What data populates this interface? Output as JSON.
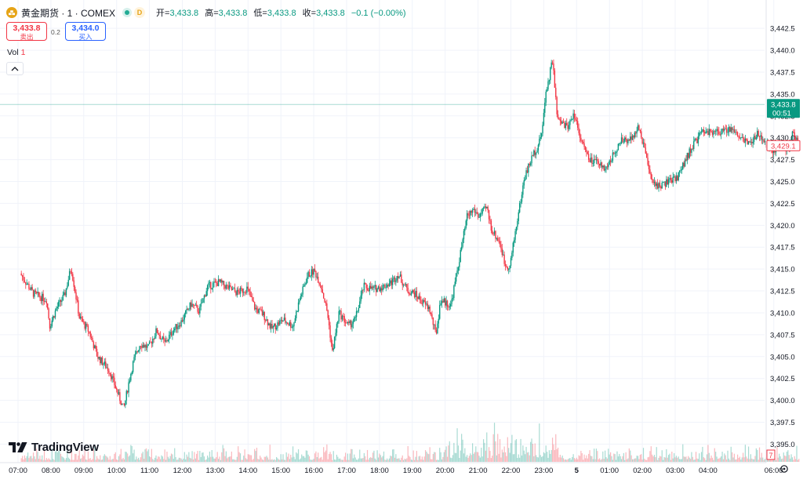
{
  "legend": {
    "symbol_name": "黄金期货 · 1 · COMEX",
    "interval_badge": "D",
    "ohlc": [
      {
        "label": "开=",
        "value": "3,433.8"
      },
      {
        "label": "高=",
        "value": "3,433.8"
      },
      {
        "label": "低=",
        "value": "3,433.8"
      },
      {
        "label": "收=",
        "value": "3,433.8"
      }
    ],
    "change": "−0.1 (−0.00%)"
  },
  "trade": {
    "sell_price": "3,433.8",
    "sell_label": "卖出",
    "spread": "0.2",
    "buy_price": "3,434.0",
    "buy_label": "买入"
  },
  "volume_legend": {
    "label": "Vol",
    "value": "1"
  },
  "branding": {
    "watermark": "TradingView"
  },
  "price_axis": {
    "ticks": [
      "3,442.5",
      "3,440.0",
      "3,437.5",
      "3,435.0",
      "3,432.5",
      "3,430.0",
      "3,427.5",
      "3,425.0",
      "3,422.5",
      "3,420.0",
      "3,417.5",
      "3,415.0",
      "3,412.5",
      "3,410.0",
      "3,407.5",
      "3,405.0",
      "3,402.5",
      "3,400.0",
      "3,397.5",
      "3,395.0"
    ],
    "last_price_label": "3,433.8",
    "countdown": "00:51",
    "prev_close_label": "3,429.1",
    "volume_tag": "7"
  },
  "time_axis": {
    "ticks": [
      "07:00",
      "08:00",
      "09:00",
      "10:00",
      "11:00",
      "12:00",
      "13:00",
      "14:00",
      "15:00",
      "16:00",
      "17:00",
      "18:00",
      "19:00",
      "20:00",
      "21:00",
      "22:00",
      "23:00",
      "5",
      "01:00",
      "02:00",
      "03:00",
      "04:00",
      "06:00"
    ]
  },
  "colors": {
    "up": "#089981",
    "down": "#f23645",
    "last_price": "#089981",
    "prev_close": "#f23645",
    "grid": "#f0f3fa"
  },
  "chart_data": {
    "type": "candlestick",
    "title": "黄金期货 · 1 · COMEX",
    "interval": "1 minute",
    "ylim": [
      3394.5,
      3443.5
    ],
    "x": [
      "07:00",
      "08:00",
      "09:00",
      "10:00",
      "11:00",
      "12:00",
      "13:00",
      "14:00",
      "15:00",
      "16:00",
      "17:00",
      "18:00",
      "19:00",
      "20:00",
      "21:00",
      "22:00",
      "23:00",
      "5",
      "01:00",
      "02:00",
      "03:00",
      "04:00",
      "06:00"
    ],
    "x_first": 0.1,
    "x_last": 23.8,
    "series": [
      {
        "name": "Price",
        "points": [
          [
            0.1,
            3414.5
          ],
          [
            0.5,
            3412.2
          ],
          [
            0.9,
            3411.5
          ],
          [
            1.0,
            3408.5
          ],
          [
            1.2,
            3410.5
          ],
          [
            1.45,
            3412.0
          ],
          [
            1.65,
            3415.2
          ],
          [
            1.9,
            3409.5
          ],
          [
            2.2,
            3407.8
          ],
          [
            2.45,
            3405.0
          ],
          [
            2.8,
            3403.5
          ],
          [
            3.05,
            3401.0
          ],
          [
            3.25,
            3399.0
          ],
          [
            3.4,
            3402.0
          ],
          [
            3.55,
            3404.5
          ],
          [
            3.75,
            3406.5
          ],
          [
            4.0,
            3406.0
          ],
          [
            4.25,
            3408.0
          ],
          [
            4.5,
            3406.5
          ],
          [
            4.75,
            3408.0
          ],
          [
            5.0,
            3409.0
          ],
          [
            5.3,
            3411.0
          ],
          [
            5.55,
            3410.2
          ],
          [
            5.8,
            3413.0
          ],
          [
            6.15,
            3413.5
          ],
          [
            6.45,
            3412.8
          ],
          [
            6.7,
            3412.3
          ],
          [
            7.0,
            3412.8
          ],
          [
            7.25,
            3410.5
          ],
          [
            7.5,
            3409.8
          ],
          [
            7.75,
            3408.2
          ],
          [
            8.1,
            3409.2
          ],
          [
            8.4,
            3408.5
          ],
          [
            8.6,
            3411.5
          ],
          [
            8.85,
            3414.3
          ],
          [
            9.05,
            3414.8
          ],
          [
            9.25,
            3413.2
          ],
          [
            9.45,
            3410.0
          ],
          [
            9.6,
            3405.5
          ],
          [
            9.8,
            3410.0
          ],
          [
            10.1,
            3408.5
          ],
          [
            10.3,
            3409.3
          ],
          [
            10.55,
            3413.0
          ],
          [
            10.85,
            3412.7
          ],
          [
            11.15,
            3413.0
          ],
          [
            11.4,
            3413.5
          ],
          [
            11.6,
            3414.4
          ],
          [
            11.9,
            3412.5
          ],
          [
            12.1,
            3412.2
          ],
          [
            12.35,
            3411.2
          ],
          [
            12.55,
            3410.5
          ],
          [
            12.75,
            3407.5
          ],
          [
            12.9,
            3411.5
          ],
          [
            13.2,
            3410.8
          ],
          [
            13.45,
            3415.8
          ],
          [
            13.7,
            3421.0
          ],
          [
            13.9,
            3421.8
          ],
          [
            14.05,
            3421.0
          ],
          [
            14.3,
            3422.0
          ],
          [
            14.45,
            3419.5
          ],
          [
            14.7,
            3418.0
          ],
          [
            14.85,
            3415.5
          ],
          [
            15.0,
            3415.3
          ],
          [
            15.2,
            3420.0
          ],
          [
            15.45,
            3425.5
          ],
          [
            15.7,
            3428.0
          ],
          [
            15.95,
            3429.8
          ],
          [
            16.1,
            3435.0
          ],
          [
            16.3,
            3438.9
          ],
          [
            16.45,
            3432.0
          ],
          [
            16.75,
            3431.2
          ],
          [
            16.95,
            3432.8
          ],
          [
            17.2,
            3429.5
          ],
          [
            17.4,
            3427.5
          ],
          [
            17.7,
            3427.0
          ],
          [
            17.95,
            3426.5
          ],
          [
            18.2,
            3428.5
          ],
          [
            18.4,
            3429.6
          ],
          [
            18.6,
            3429.8
          ],
          [
            18.9,
            3431.0
          ],
          [
            19.1,
            3429.0
          ],
          [
            19.3,
            3425.0
          ],
          [
            19.55,
            3424.5
          ],
          [
            19.85,
            3425.0
          ],
          [
            20.1,
            3425.5
          ],
          [
            20.35,
            3427.5
          ],
          [
            20.6,
            3429.3
          ],
          [
            20.9,
            3430.8
          ],
          [
            21.15,
            3430.5
          ],
          [
            21.45,
            3430.8
          ],
          [
            21.75,
            3431.0
          ],
          [
            22.05,
            3430.0
          ],
          [
            22.35,
            3429.3
          ],
          [
            22.55,
            3430.5
          ],
          [
            22.8,
            3429.3
          ],
          [
            23.0,
            3428.6
          ],
          [
            23.2,
            3429.1
          ],
          [
            23.45,
            3428.5
          ],
          [
            23.6,
            3430.5
          ],
          [
            23.8,
            3429.1
          ]
        ]
      }
    ],
    "last_price": 3433.8,
    "prev_close": 3429.1
  }
}
